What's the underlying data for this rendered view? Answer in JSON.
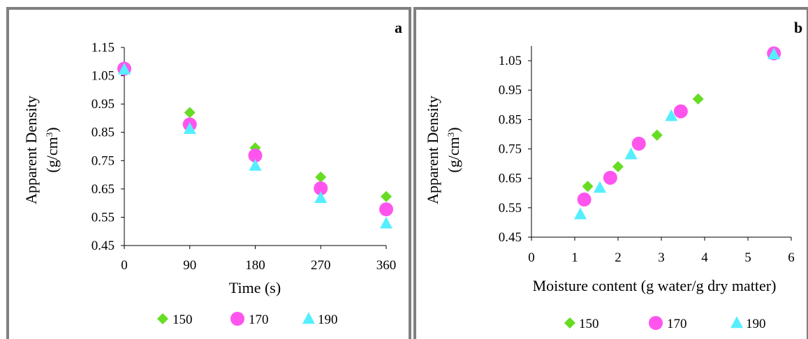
{
  "chart_data": [
    {
      "type": "scatter",
      "panel_label": "a",
      "xlabel": "Time (s)",
      "ylabel": "Apparent Density",
      "ylabel_unit_base": "(g/cm",
      "ylabel_unit_exp": "3",
      "ylabel_unit_close": ")",
      "xlim": [
        0,
        360
      ],
      "ylim": [
        0.45,
        1.15
      ],
      "x_ticks": [
        "0",
        "90",
        "180",
        "270",
        "360"
      ],
      "y_ticks": [
        "0.45",
        "0.55",
        "0.65",
        "0.75",
        "0.85",
        "0.95",
        "1.05",
        "1.15"
      ],
      "grid": false,
      "legend_position": "bottom",
      "series": [
        {
          "name": "150",
          "marker": "diamond",
          "color": "#66dd22",
          "points": [
            [
              0,
              1.075
            ],
            [
              90,
              0.92
            ],
            [
              180,
              0.795
            ],
            [
              270,
              0.692
            ],
            [
              360,
              0.623
            ]
          ]
        },
        {
          "name": "170",
          "marker": "circle",
          "color": "#ff55ee",
          "points": [
            [
              0,
              1.075
            ],
            [
              90,
              0.878
            ],
            [
              180,
              0.768
            ],
            [
              270,
              0.652
            ],
            [
              360,
              0.578
            ]
          ]
        },
        {
          "name": "190",
          "marker": "triangle",
          "color": "#55eeff",
          "points": [
            [
              0,
              1.072
            ],
            [
              90,
              0.862
            ],
            [
              180,
              0.732
            ],
            [
              270,
              0.618
            ],
            [
              360,
              0.528
            ]
          ]
        }
      ]
    },
    {
      "type": "scatter",
      "panel_label": "b",
      "xlabel": "Moisture content (g water/g dry matter)",
      "ylabel": "Apparent Density",
      "ylabel_unit_base": "(g/cm",
      "ylabel_unit_exp": "3",
      "ylabel_unit_close": ")",
      "xlim": [
        0,
        6
      ],
      "ylim": [
        0.45,
        1.1
      ],
      "x_ticks": [
        "0",
        "1",
        "2",
        "3",
        "4",
        "5",
        "6"
      ],
      "y_ticks": [
        "0.45",
        "0.55",
        "0.65",
        "0.75",
        "0.85",
        "0.95",
        "1.05"
      ],
      "grid": false,
      "legend_position": "bottom",
      "series": [
        {
          "name": "150",
          "marker": "diamond",
          "color": "#66dd22",
          "points": [
            [
              1.3,
              0.623
            ],
            [
              2.0,
              0.69
            ],
            [
              2.9,
              0.797
            ],
            [
              3.85,
              0.92
            ],
            [
              5.6,
              1.075
            ]
          ]
        },
        {
          "name": "170",
          "marker": "circle",
          "color": "#ff55ee",
          "points": [
            [
              1.22,
              0.578
            ],
            [
              1.82,
              0.652
            ],
            [
              2.48,
              0.768
            ],
            [
              3.45,
              0.878
            ],
            [
              5.6,
              1.075
            ]
          ]
        },
        {
          "name": "190",
          "marker": "triangle",
          "color": "#55eeff",
          "points": [
            [
              1.13,
              0.528
            ],
            [
              1.58,
              0.618
            ],
            [
              2.3,
              0.732
            ],
            [
              3.23,
              0.862
            ],
            [
              5.6,
              1.072
            ]
          ]
        }
      ]
    }
  ]
}
